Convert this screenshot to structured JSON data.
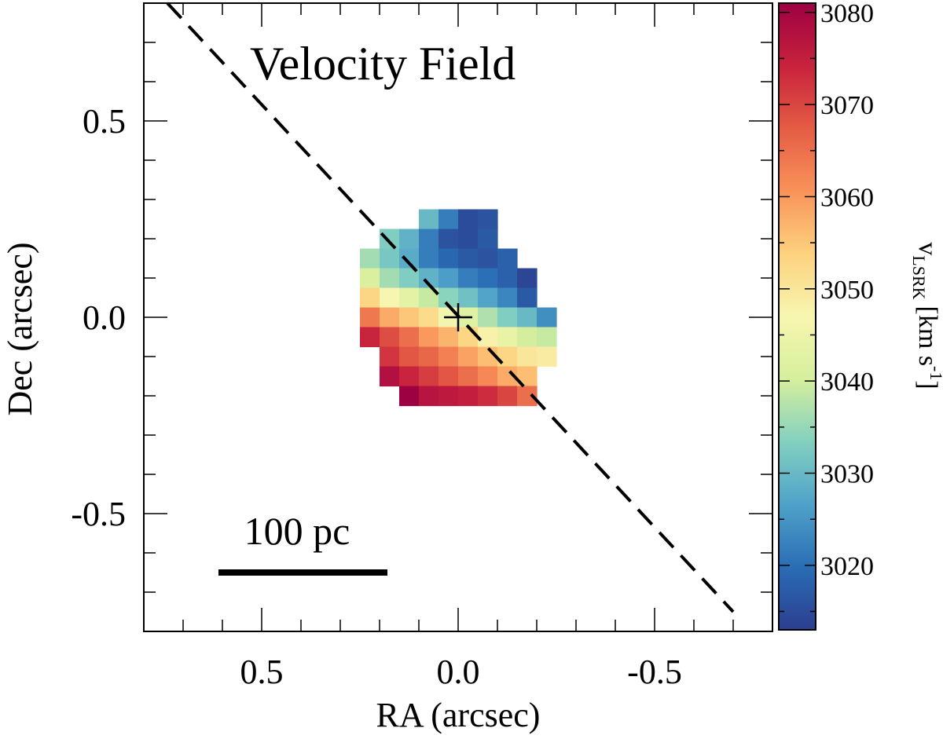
{
  "chart_data": {
    "type": "heatmap",
    "title": "Velocity Field",
    "xlabel": "RA (arcsec)",
    "ylabel": "Dec (arcsec)",
    "x_range": [
      0.8,
      -0.8
    ],
    "y_range": [
      -0.8,
      0.8
    ],
    "x_ticks": [
      {
        "value": 0.5,
        "label": "0.5"
      },
      {
        "value": 0.0,
        "label": "0.0"
      },
      {
        "value": -0.5,
        "label": "-0.5"
      }
    ],
    "y_ticks": [
      {
        "value": 0.5,
        "label": "0.5"
      },
      {
        "value": 0.0,
        "label": "0.0"
      },
      {
        "value": -0.5,
        "label": "-0.5"
      }
    ],
    "minor_tick_step": 0.1,
    "pixel_size_arcsec": 0.05,
    "colorbar": {
      "label_main": "v",
      "label_sub": "LSRK",
      "label_units": "[km s",
      "label_exp": "-1",
      "label_close": "]",
      "range": [
        3013,
        3081
      ],
      "ticks": [
        {
          "value": 3020,
          "label": "3020"
        },
        {
          "value": 3030,
          "label": "3030"
        },
        {
          "value": 3040,
          "label": "3040"
        },
        {
          "value": 3050,
          "label": "3050"
        },
        {
          "value": 3060,
          "label": "3060"
        },
        {
          "value": 3070,
          "label": "3070"
        },
        {
          "value": 3080,
          "label": "3080"
        }
      ],
      "colors": [
        "#2c3e8f",
        "#2a6db5",
        "#4fa2c9",
        "#83d0c0",
        "#d6ef9d",
        "#f7f6b0",
        "#fdd27f",
        "#f9935a",
        "#e45c44",
        "#c8223d",
        "#9e0142"
      ]
    },
    "rows": [
      {
        "dec": 0.25,
        "ra_start": 0.075,
        "values": [
          3030,
          3022,
          3015,
          3016
        ]
      },
      {
        "dec": 0.2,
        "ra_start": 0.175,
        "values": [
          3033,
          3029,
          3022,
          3016,
          3015,
          3017
        ]
      },
      {
        "dec": 0.15,
        "ra_start": 0.225,
        "values": [
          3036,
          3032,
          3028,
          3022,
          3019,
          3017,
          3016,
          3018
        ]
      },
      {
        "dec": 0.1,
        "ra_start": 0.225,
        "values": [
          3041,
          3036,
          3033,
          3029,
          3026,
          3022,
          3020,
          3018,
          3014
        ]
      },
      {
        "dec": 0.05,
        "ra_start": 0.225,
        "values": [
          3053,
          3047,
          3043,
          3039,
          3034,
          3031,
          3027,
          3023,
          3017
        ]
      },
      {
        "dec": 0.0,
        "ra_start": 0.225,
        "values": [
          3064,
          3058,
          3055,
          3052,
          3046,
          3042,
          3037,
          3033,
          3030,
          3024
        ]
      },
      {
        "dec": -0.05,
        "ra_start": 0.225,
        "values": [
          3074,
          3069,
          3065,
          3060,
          3057,
          3053,
          3048,
          3044,
          3040,
          3039
        ]
      },
      {
        "dec": -0.1,
        "ra_start": 0.175,
        "values": [
          3072,
          3068,
          3066,
          3063,
          3059,
          3056,
          3053,
          3050,
          3049
        ]
      },
      {
        "dec": -0.15,
        "ra_start": 0.175,
        "values": [
          3078,
          3074,
          3071,
          3068,
          3065,
          3062,
          3058,
          3056
        ]
      },
      {
        "dec": -0.2,
        "ra_start": 0.125,
        "values": [
          3081,
          3077,
          3076,
          3075,
          3073,
          3070,
          3065
        ]
      }
    ],
    "center_marker": {
      "ra": 0.0,
      "dec": 0.0,
      "symbol": "+"
    },
    "major_axis_line": {
      "style": "dashed",
      "points": [
        [
          0.74,
          0.8
        ],
        [
          -0.7,
          -0.75
        ]
      ]
    },
    "scalebar": {
      "label": "100 pc",
      "ra_from": 0.61,
      "ra_to": 0.18,
      "dec": -0.65
    }
  }
}
